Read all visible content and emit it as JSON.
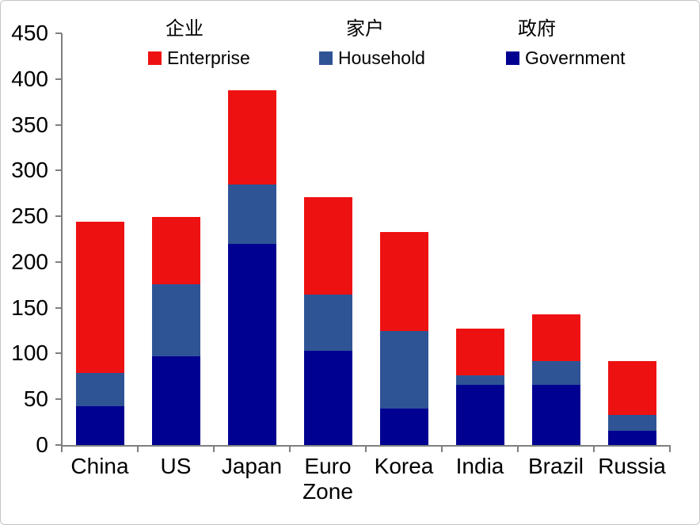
{
  "chart_data": {
    "type": "bar",
    "stacked": true,
    "title": "",
    "xlabel": "",
    "ylabel": "",
    "grid": false,
    "categories": [
      "China",
      "US",
      "Japan",
      "Euro Zone",
      "Korea",
      "India",
      "Brazil",
      "Russia"
    ],
    "series": [
      {
        "name": "Government",
        "label_zh": "政府",
        "color": "#000091",
        "values": [
          42,
          97,
          220,
          103,
          40,
          66,
          66,
          16
        ]
      },
      {
        "name": "Household",
        "label_zh": "家户",
        "color": "#2F5496",
        "values": [
          37,
          79,
          65,
          61,
          85,
          10,
          26,
          17
        ]
      },
      {
        "name": "Enterprise",
        "label_zh": "企业",
        "color": "#EE1111",
        "values": [
          165,
          73,
          103,
          107,
          108,
          51,
          51,
          59
        ]
      }
    ],
    "totals": [
      244,
      249,
      388,
      271,
      233,
      127,
      143,
      92
    ],
    "y_axis": {
      "min": 0,
      "max": 450,
      "ticks": [
        0,
        50,
        100,
        150,
        200,
        250,
        300,
        350,
        400,
        450
      ]
    },
    "legend": {
      "position": "top",
      "entries": [
        {
          "zh": "企业",
          "en": "Enterprise",
          "color": "#EE1111"
        },
        {
          "zh": "家户",
          "en": "Household",
          "color": "#2F5496"
        },
        {
          "zh": "政府",
          "en": "Government",
          "color": "#000091"
        }
      ]
    }
  }
}
